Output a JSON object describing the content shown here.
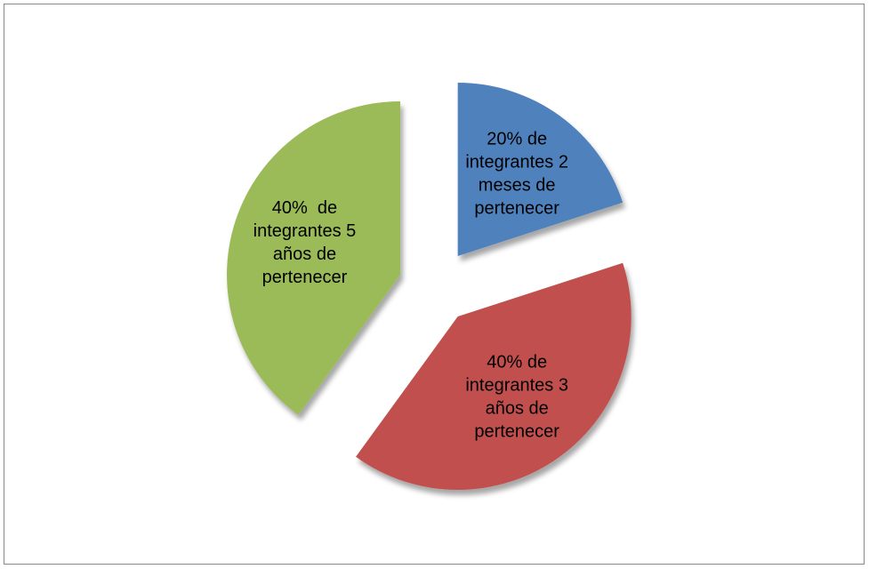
{
  "chart_data": {
    "type": "pie",
    "values": [
      20,
      40,
      40
    ],
    "value_labels": [
      [
        "20% de",
        "integrantes 2",
        "meses de",
        "pertenecer"
      ],
      [
        "40% de",
        "integrantes 3",
        "años de",
        "pertenecer"
      ],
      [
        "40%  de",
        "integrantes 5",
        "años de",
        "pertenecer"
      ]
    ],
    "colors": [
      "#4f81bd",
      "#c0504d",
      "#9bbb59"
    ],
    "exploded": true
  }
}
